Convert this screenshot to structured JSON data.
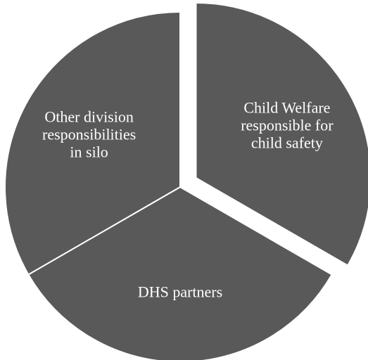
{
  "chart_data": {
    "type": "pie",
    "title": "",
    "legend": "none",
    "exploded_slice": "Child Welfare responsible for child safety",
    "slices": [
      {
        "label": "Child Welfare responsible for child safety",
        "label_lines": [
          "Child Welfare",
          "responsible for",
          "child safety"
        ],
        "value": 33.3,
        "color": "#595959"
      },
      {
        "label": "DHS partners",
        "label_lines": [
          "DHS partners"
        ],
        "value": 33.3,
        "color": "#595959"
      },
      {
        "label": "Other division responsibilities in silo",
        "label_lines": [
          "Other division",
          "responsibilities",
          "in silo"
        ],
        "value": 33.3,
        "color": "#595959"
      }
    ]
  }
}
